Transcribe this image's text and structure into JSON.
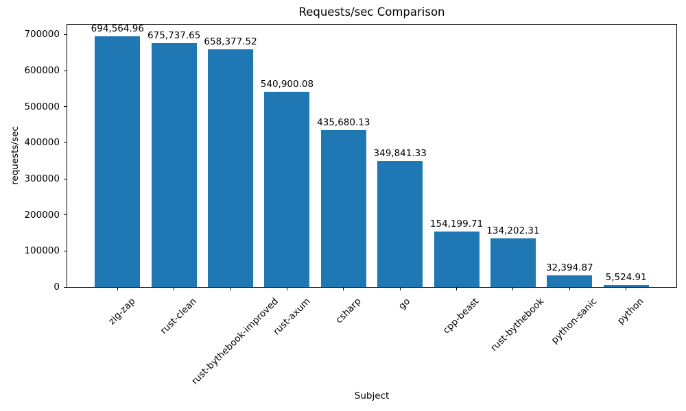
{
  "chart_data": {
    "type": "bar",
    "title": "Requests/sec Comparison",
    "xlabel": "Subject",
    "ylabel": "requests/sec",
    "categories": [
      "zig-zap",
      "rust-clean",
      "rust-bythebook-improved",
      "rust-axum",
      "csharp",
      "go",
      "cpp-beast",
      "rust-bythebook",
      "python-sanic",
      "python"
    ],
    "values": [
      694564.96,
      675737.65,
      658377.52,
      540900.08,
      435680.13,
      349841.33,
      154199.71,
      134202.31,
      32394.87,
      5524.91
    ],
    "value_labels": [
      "694,564.96",
      "675,737.65",
      "658,377.52",
      "540,900.08",
      "435,680.13",
      "349,841.33",
      "154,199.71",
      "134,202.31",
      "32,394.87",
      "5,524.91"
    ],
    "yticks": [
      0,
      100000,
      200000,
      300000,
      400000,
      500000,
      600000,
      700000
    ],
    "ylim": [
      0,
      729293
    ],
    "xlim": [
      -0.89,
      9.89
    ],
    "bar_width_frac": 0.8,
    "tick_label_rotation_deg": 45,
    "bar_color": "#1f77b4",
    "spine_color": "#000000",
    "text_color": "#000000",
    "grid": false,
    "legend": null
  }
}
